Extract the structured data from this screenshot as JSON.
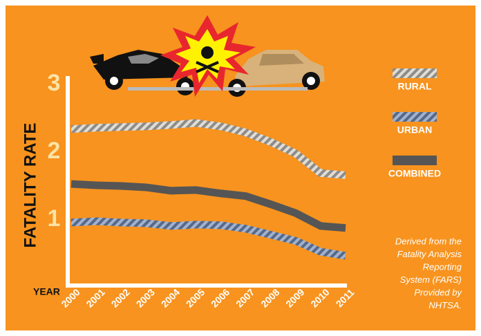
{
  "chart_data": {
    "type": "line",
    "y_label": "FATALITY RATE",
    "x_label": "YEAR",
    "categories": [
      "2000",
      "2001",
      "2002",
      "2003",
      "2004",
      "2005",
      "2006",
      "2007",
      "2008",
      "2009",
      "2010",
      "2011"
    ],
    "series": [
      {
        "name": "RURAL",
        "color": "#8c8c8c",
        "stripe_color": "#e2ddd3",
        "hatched": true,
        "values": [
          2.34,
          2.36,
          2.37,
          2.38,
          2.4,
          2.43,
          2.38,
          2.29,
          2.15,
          1.98,
          1.69,
          1.66
        ]
      },
      {
        "name": "URBAN",
        "color": "#56698a",
        "stripe_color": "#a3b2cc",
        "hatched": true,
        "values": [
          0.96,
          0.98,
          0.96,
          0.95,
          0.91,
          0.93,
          0.92,
          0.87,
          0.78,
          0.69,
          0.53,
          0.47
        ]
      },
      {
        "name": "COMBINED",
        "color": "#555555",
        "stripe_color": "#555555",
        "hatched": false,
        "values": [
          1.53,
          1.51,
          1.5,
          1.48,
          1.43,
          1.44,
          1.39,
          1.35,
          1.23,
          1.1,
          0.91,
          0.88
        ]
      }
    ],
    "ylim": [
      0,
      3
    ],
    "yticks": [
      1,
      2,
      3
    ],
    "annotation_lines": [
      "Derived from the",
      "Fatality Analysis",
      "Reporting",
      "System (FARS)",
      "Provided by",
      "NHTSA."
    ]
  }
}
